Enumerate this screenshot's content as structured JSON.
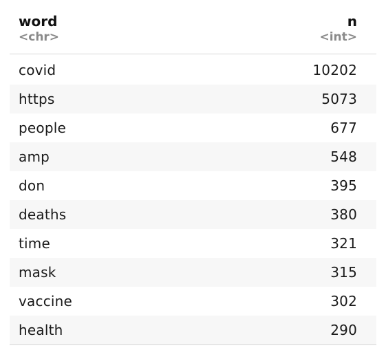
{
  "table": {
    "columns": [
      {
        "name": "word",
        "type": "<chr>",
        "align": "left"
      },
      {
        "name": "n",
        "type": "<int>",
        "align": "right"
      }
    ],
    "rows": [
      {
        "word": "covid",
        "n": "10202"
      },
      {
        "word": "https",
        "n": "5073"
      },
      {
        "word": "people",
        "n": "677"
      },
      {
        "word": "amp",
        "n": "548"
      },
      {
        "word": "don",
        "n": "395"
      },
      {
        "word": "deaths",
        "n": "380"
      },
      {
        "word": "time",
        "n": "321"
      },
      {
        "word": "mask",
        "n": "315"
      },
      {
        "word": "vaccine",
        "n": "302"
      },
      {
        "word": "health",
        "n": "290"
      }
    ]
  }
}
